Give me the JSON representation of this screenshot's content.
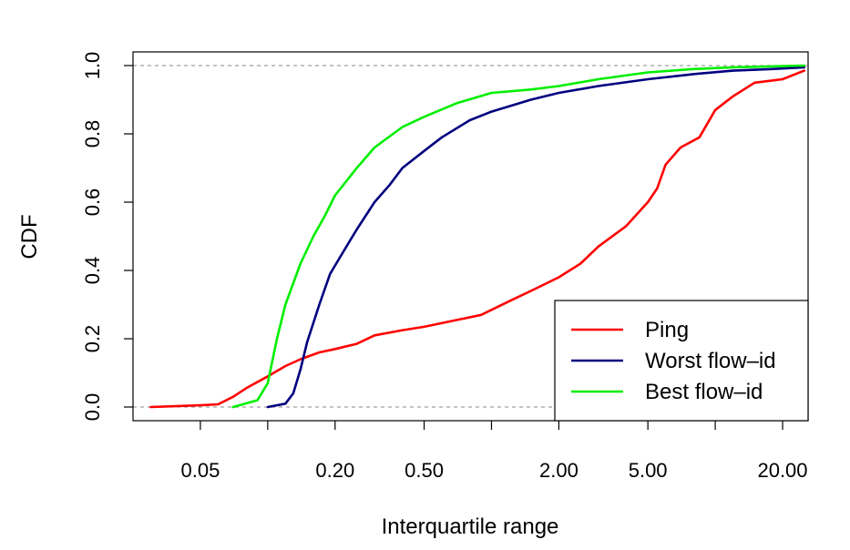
{
  "chart_data": {
    "type": "line",
    "title": "",
    "xlabel": "Interquartile range",
    "ylabel": "CDF",
    "x_scale": "log",
    "xlim": [
      0.025,
      26
    ],
    "ylim": [
      -0.04,
      1.04
    ],
    "x_ticks": [
      0.05,
      0.1,
      0.2,
      0.5,
      1,
      2,
      5,
      10,
      20
    ],
    "x_tick_labels": [
      "0.05",
      "",
      "0.20",
      "0.50",
      "",
      "2.00",
      "5.00",
      "",
      "20.00"
    ],
    "y_ticks": [
      0,
      0.2,
      0.4,
      0.6,
      0.8,
      1.0
    ],
    "y_tick_labels": [
      "0.0",
      "0.2",
      "0.4",
      "0.6",
      "0.8",
      "1.0"
    ],
    "reference_lines_y": [
      0,
      1
    ],
    "grid": false,
    "legend_position": "bottom-right",
    "series": [
      {
        "name": "Ping",
        "color": "#ff0000",
        "points": [
          [
            0.03,
            0.0
          ],
          [
            0.05,
            0.005
          ],
          [
            0.06,
            0.008
          ],
          [
            0.07,
            0.03
          ],
          [
            0.08,
            0.055
          ],
          [
            0.1,
            0.09
          ],
          [
            0.12,
            0.12
          ],
          [
            0.14,
            0.14
          ],
          [
            0.17,
            0.16
          ],
          [
            0.2,
            0.17
          ],
          [
            0.25,
            0.185
          ],
          [
            0.3,
            0.21
          ],
          [
            0.4,
            0.225
          ],
          [
            0.5,
            0.235
          ],
          [
            0.7,
            0.255
          ],
          [
            0.9,
            0.27
          ],
          [
            1.2,
            0.31
          ],
          [
            1.5,
            0.34
          ],
          [
            2.0,
            0.38
          ],
          [
            2.5,
            0.42
          ],
          [
            3.0,
            0.47
          ],
          [
            4.0,
            0.53
          ],
          [
            5.0,
            0.6
          ],
          [
            5.5,
            0.64
          ],
          [
            6.0,
            0.71
          ],
          [
            7.0,
            0.76
          ],
          [
            8.5,
            0.79
          ],
          [
            10.0,
            0.87
          ],
          [
            12.0,
            0.91
          ],
          [
            15.0,
            0.95
          ],
          [
            20.0,
            0.96
          ],
          [
            25.0,
            0.985
          ]
        ]
      },
      {
        "name": "Worst flow–id",
        "color": "#000080",
        "points": [
          [
            0.1,
            0.0
          ],
          [
            0.12,
            0.01
          ],
          [
            0.13,
            0.04
          ],
          [
            0.14,
            0.11
          ],
          [
            0.15,
            0.19
          ],
          [
            0.17,
            0.3
          ],
          [
            0.19,
            0.39
          ],
          [
            0.22,
            0.46
          ],
          [
            0.25,
            0.52
          ],
          [
            0.3,
            0.6
          ],
          [
            0.35,
            0.65
          ],
          [
            0.4,
            0.7
          ],
          [
            0.5,
            0.75
          ],
          [
            0.6,
            0.79
          ],
          [
            0.8,
            0.84
          ],
          [
            1.0,
            0.865
          ],
          [
            1.5,
            0.9
          ],
          [
            2.0,
            0.92
          ],
          [
            3.0,
            0.94
          ],
          [
            5.0,
            0.96
          ],
          [
            8.0,
            0.975
          ],
          [
            12.0,
            0.985
          ],
          [
            18.0,
            0.99
          ],
          [
            25.0,
            0.995
          ]
        ]
      },
      {
        "name": "Best flow–id",
        "color": "#00ee00",
        "points": [
          [
            0.07,
            0.0
          ],
          [
            0.09,
            0.02
          ],
          [
            0.1,
            0.07
          ],
          [
            0.11,
            0.2
          ],
          [
            0.12,
            0.3
          ],
          [
            0.14,
            0.42
          ],
          [
            0.16,
            0.5
          ],
          [
            0.18,
            0.56
          ],
          [
            0.2,
            0.62
          ],
          [
            0.25,
            0.7
          ],
          [
            0.3,
            0.76
          ],
          [
            0.4,
            0.82
          ],
          [
            0.5,
            0.85
          ],
          [
            0.7,
            0.89
          ],
          [
            1.0,
            0.92
          ],
          [
            1.5,
            0.93
          ],
          [
            2.0,
            0.94
          ],
          [
            3.0,
            0.96
          ],
          [
            5.0,
            0.98
          ],
          [
            8.0,
            0.99
          ],
          [
            12.0,
            0.995
          ],
          [
            25.0,
            1.0
          ]
        ]
      }
    ]
  }
}
